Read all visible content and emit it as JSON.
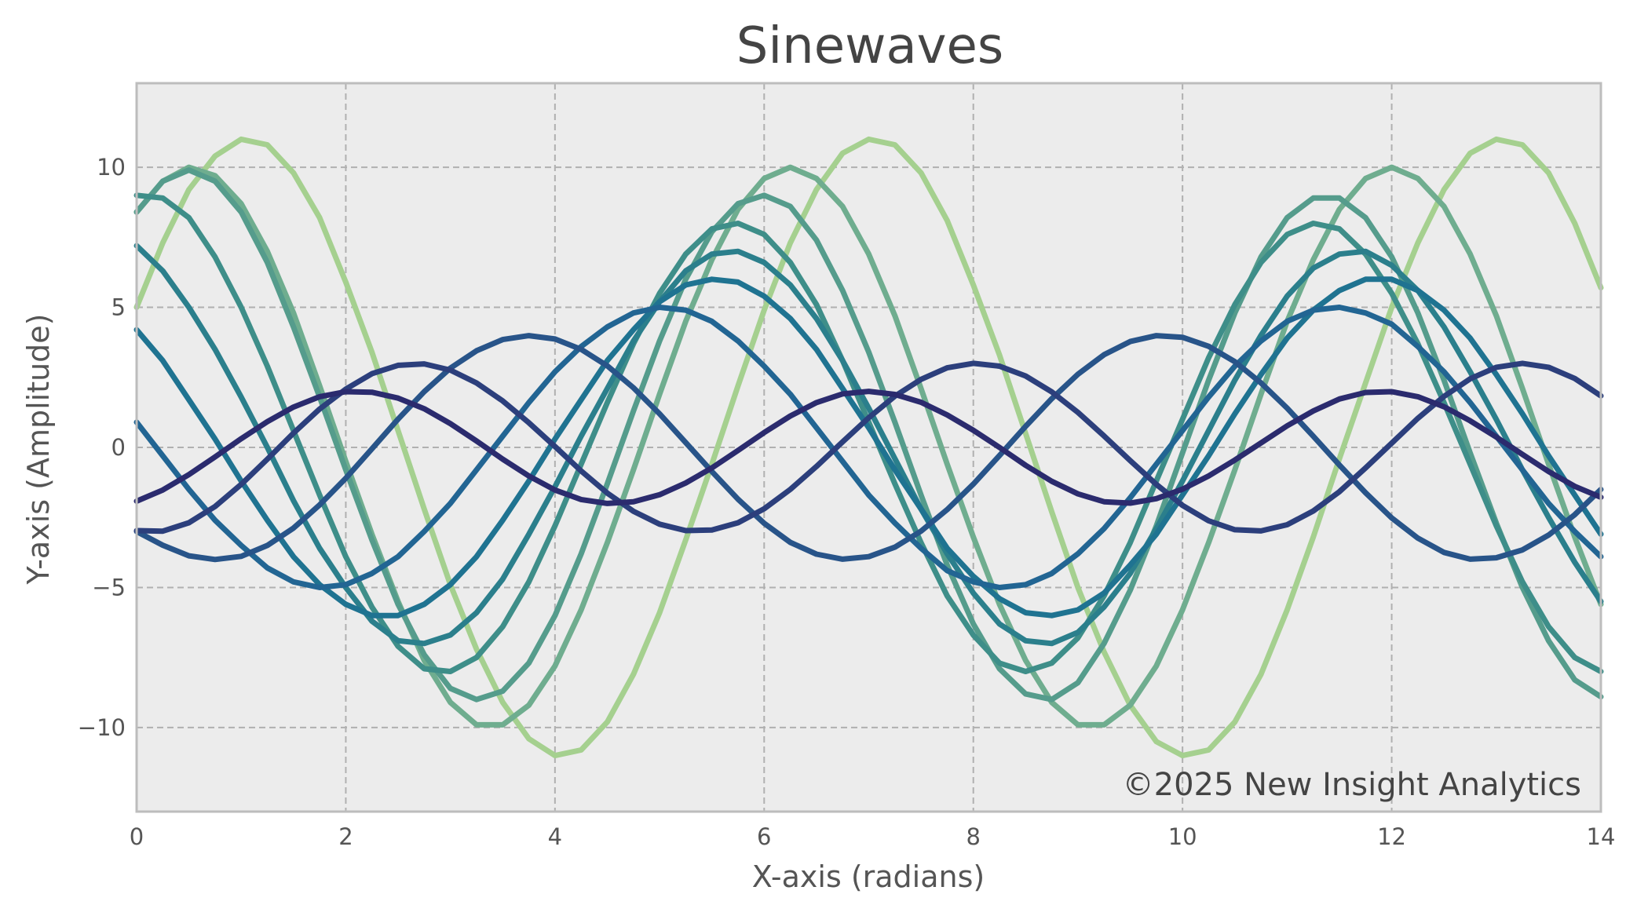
{
  "chart_data": {
    "type": "line",
    "title": "Sinewaves",
    "xlabel": "X-axis (radians)",
    "ylabel": "Y-axis (Amplitude)",
    "xlim": [
      0,
      14
    ],
    "ylim": [
      -13,
      13
    ],
    "x_ticks": [
      0,
      2,
      4,
      6,
      8,
      10,
      12,
      14
    ],
    "y_ticks": [
      -10,
      -5,
      0,
      5,
      10
    ],
    "x_tick_labels": [
      "0",
      "2",
      "4",
      "6",
      "8",
      "10",
      "12",
      "14"
    ],
    "y_tick_labels": [
      "−10",
      "−5",
      "0",
      "5",
      "10"
    ],
    "grid": true,
    "plot_background": "#ececec",
    "grid_color": "#b0b0b0",
    "frame_color": "#bdbdbd",
    "annotation": "©2025 New Insight Analytics",
    "x": [
      0,
      0.25,
      0.5,
      0.75,
      1,
      1.25,
      1.5,
      1.75,
      2,
      2.25,
      2.5,
      2.75,
      3,
      3.25,
      3.5,
      3.75,
      4,
      4.25,
      4.5,
      4.75,
      5,
      5.25,
      5.5,
      5.75,
      6,
      6.25,
      6.5,
      6.75,
      7,
      7.25,
      7.5,
      7.75,
      8,
      8.25,
      8.5,
      8.75,
      9,
      9.25,
      9.5,
      9.75,
      10,
      10.25,
      10.5,
      10.75,
      11,
      11.25,
      11.5,
      11.75,
      12,
      12.25,
      12.5,
      12.75,
      13,
      13.25,
      13.5,
      13.75,
      14
    ],
    "series": [
      {
        "color": "#2b2b6e",
        "values": [
          -1.92,
          -1.52,
          -0.97,
          -0.34,
          0.31,
          0.92,
          1.44,
          1.81,
          1.99,
          1.97,
          1.76,
          1.38,
          0.85,
          0.23,
          -0.42,
          -1.02,
          -1.52,
          -1.86,
          -2.0,
          -1.94,
          -1.69,
          -1.27,
          -0.73,
          -0.11,
          0.53,
          1.12,
          1.6,
          1.91,
          2.0,
          1.89,
          1.61,
          1.16,
          0.61,
          0.0,
          -0.64,
          -1.21,
          -1.66,
          -1.94,
          -1.99,
          -1.83,
          -1.49,
          -1.02,
          -0.45,
          0.16,
          0.77,
          1.3,
          1.73,
          1.96,
          1.99,
          1.81,
          1.45,
          0.95,
          0.37,
          -0.25,
          -0.86,
          -1.39,
          -1.78
        ]
      },
      {
        "color": "#2c3f7c",
        "values": [
          -2.97,
          -2.99,
          -2.69,
          -2.11,
          -1.32,
          -0.42,
          0.51,
          1.37,
          2.08,
          2.63,
          2.93,
          2.98,
          2.76,
          2.3,
          1.66,
          0.88,
          0.03,
          -0.84,
          -1.63,
          -2.28,
          -2.74,
          -2.97,
          -2.95,
          -2.69,
          -2.19,
          -1.5,
          -0.68,
          0.2,
          1.06,
          1.83,
          2.43,
          2.84,
          3.0,
          2.9,
          2.55,
          1.98,
          1.25,
          0.41,
          -0.47,
          -1.32,
          -2.07,
          -2.62,
          -2.94,
          -2.98,
          -2.76,
          -2.27,
          -1.58,
          -0.73,
          0.15,
          1.04,
          1.82,
          2.45,
          2.86,
          3.0,
          2.86,
          2.46,
          1.84
        ]
      },
      {
        "color": "#285489",
        "values": [
          -3.0,
          -3.49,
          -3.87,
          -4.0,
          -3.89,
          -3.5,
          -2.88,
          -2.05,
          -1.1,
          -0.05,
          1.01,
          1.99,
          2.83,
          3.45,
          3.85,
          3.99,
          3.87,
          3.5,
          2.91,
          2.13,
          1.2,
          0.17,
          -0.86,
          -1.85,
          -2.71,
          -3.39,
          -3.81,
          -3.99,
          -3.9,
          -3.56,
          -2.99,
          -2.22,
          -1.31,
          -0.29,
          0.75,
          1.74,
          2.61,
          3.31,
          3.78,
          3.99,
          3.93,
          3.61,
          3.06,
          2.3,
          1.4,
          0.4,
          -0.63,
          -1.62,
          -2.52,
          -3.24,
          -3.75,
          -3.99,
          -3.94,
          -3.66,
          -3.13,
          -2.4,
          -1.5
        ]
      },
      {
        "color": "#226593",
        "values": [
          0.9,
          -0.3,
          -1.5,
          -2.6,
          -3.5,
          -4.3,
          -4.8,
          -5.0,
          -4.9,
          -4.5,
          -3.9,
          -3.0,
          -2.0,
          -0.8,
          0.4,
          1.6,
          2.7,
          3.6,
          4.3,
          4.8,
          5.0,
          4.9,
          4.5,
          3.8,
          2.9,
          1.9,
          0.7,
          -0.5,
          -1.7,
          -2.7,
          -3.6,
          -4.4,
          -4.8,
          -5.0,
          -4.9,
          -4.5,
          -3.8,
          -2.9,
          -1.8,
          -0.6,
          0.6,
          1.8,
          2.9,
          3.8,
          4.5,
          4.9,
          5.0,
          4.8,
          4.4,
          3.6,
          2.7,
          1.6,
          0.4,
          -0.8,
          -2.0,
          -3.0,
          -3.9
        ]
      },
      {
        "color": "#1f7391",
        "values": [
          4.2,
          3.1,
          1.7,
          0.3,
          -1.2,
          -2.6,
          -3.9,
          -4.9,
          -5.6,
          -6.0,
          -6.0,
          -5.6,
          -4.9,
          -3.9,
          -2.6,
          -1.2,
          0.3,
          1.7,
          3.1,
          4.2,
          5.2,
          5.8,
          6.0,
          5.9,
          5.4,
          4.6,
          3.5,
          2.1,
          0.7,
          -0.8,
          -2.2,
          -3.6,
          -4.6,
          -5.4,
          -5.9,
          -6.0,
          -5.8,
          -5.2,
          -4.2,
          -3.1,
          -1.7,
          -0.3,
          1.2,
          2.6,
          3.9,
          4.9,
          5.6,
          6.0,
          6.0,
          5.6,
          4.9,
          3.9,
          2.6,
          1.2,
          -0.3,
          -1.7,
          -3.1
        ]
      },
      {
        "color": "#2b7f8c",
        "values": [
          7.2,
          6.3,
          5.0,
          3.5,
          1.8,
          0.0,
          -1.9,
          -3.6,
          -5.0,
          -6.2,
          -6.9,
          -7.0,
          -6.7,
          -5.9,
          -4.7,
          -3.1,
          -1.4,
          0.4,
          2.1,
          3.8,
          5.2,
          6.3,
          6.9,
          7.0,
          6.6,
          5.8,
          4.6,
          3.1,
          1.4,
          -0.4,
          -2.2,
          -3.8,
          -5.2,
          -6.3,
          -6.9,
          -7.0,
          -6.6,
          -5.7,
          -4.5,
          -2.9,
          -1.2,
          0.6,
          2.4,
          4.0,
          5.4,
          6.4,
          6.9,
          7.0,
          6.5,
          5.6,
          4.3,
          2.7,
          1.0,
          -0.8,
          -2.5,
          -4.1,
          -5.5
        ]
      },
      {
        "color": "#3e8e89",
        "values": [
          9.0,
          8.9,
          8.2,
          6.8,
          5.0,
          2.9,
          0.6,
          -1.7,
          -3.9,
          -5.7,
          -7.1,
          -7.9,
          -8.0,
          -7.5,
          -6.4,
          -4.8,
          -2.8,
          -0.6,
          1.6,
          3.7,
          5.5,
          6.9,
          7.8,
          8.0,
          7.6,
          6.6,
          5.1,
          3.1,
          0.9,
          -1.3,
          -3.4,
          -5.3,
          -6.7,
          -7.7,
          -8.0,
          -7.7,
          -6.8,
          -5.3,
          -3.4,
          -1.2,
          1.0,
          3.2,
          5.1,
          6.6,
          7.6,
          8.0,
          7.8,
          6.9,
          5.5,
          3.7,
          1.6,
          -0.6,
          -2.8,
          -4.8,
          -6.4,
          -7.5,
          -8.0
        ]
      },
      {
        "color": "#559c8c",
        "values": [
          8.4,
          9.5,
          9.9,
          9.5,
          8.4,
          6.6,
          4.3,
          1.8,
          -0.8,
          -3.3,
          -5.6,
          -7.4,
          -8.6,
          -9.0,
          -8.7,
          -7.7,
          -6.0,
          -3.8,
          -1.3,
          1.3,
          3.8,
          6.0,
          7.7,
          8.7,
          9.0,
          8.6,
          7.4,
          5.6,
          3.4,
          0.9,
          -1.7,
          -4.2,
          -6.3,
          -7.9,
          -8.8,
          -9.0,
          -8.4,
          -7.0,
          -5.1,
          -2.8,
          -0.2,
          2.4,
          4.8,
          6.8,
          8.2,
          8.9,
          8.9,
          8.2,
          6.8,
          4.8,
          2.4,
          -0.2,
          -2.7,
          -5.0,
          -6.9,
          -8.3,
          -8.9
        ]
      },
      {
        "color": "#6fad8f",
        "values": [
          8.4,
          9.5,
          10.0,
          9.7,
          8.7,
          7.0,
          4.8,
          2.2,
          -0.5,
          -3.1,
          -5.5,
          -7.6,
          -9.1,
          -9.9,
          -9.9,
          -9.2,
          -7.8,
          -5.8,
          -3.4,
          -0.8,
          1.9,
          4.5,
          6.7,
          8.5,
          9.6,
          10.0,
          9.6,
          8.6,
          6.9,
          4.7,
          2.1,
          -0.6,
          -3.2,
          -5.6,
          -7.6,
          -9.1,
          -9.9,
          -9.9,
          -9.2,
          -7.8,
          -5.8,
          -3.4,
          -0.8,
          1.9,
          4.5,
          6.7,
          8.5,
          9.6,
          10.0,
          9.6,
          8.6,
          6.9,
          4.7,
          2.1,
          -0.6,
          -3.2,
          -5.6
        ]
      },
      {
        "color": "#a5d08f",
        "values": [
          5.0,
          7.3,
          9.2,
          10.4,
          11.0,
          10.8,
          9.8,
          8.2,
          5.9,
          3.4,
          0.6,
          -2.2,
          -4.9,
          -7.2,
          -9.1,
          -10.4,
          -11.0,
          -10.8,
          -9.8,
          -8.1,
          -5.9,
          -3.3,
          -0.6,
          2.2,
          4.9,
          7.3,
          9.2,
          10.5,
          11.0,
          10.8,
          9.8,
          8.1,
          5.8,
          3.3,
          0.5,
          -2.3,
          -5.0,
          -7.3,
          -9.2,
          -10.5,
          -11.0,
          -10.8,
          -9.8,
          -8.1,
          -5.8,
          -3.2,
          -0.4,
          2.3,
          5.0,
          7.3,
          9.2,
          10.5,
          11.0,
          10.8,
          9.8,
          8.0,
          5.7
        ]
      }
    ]
  }
}
